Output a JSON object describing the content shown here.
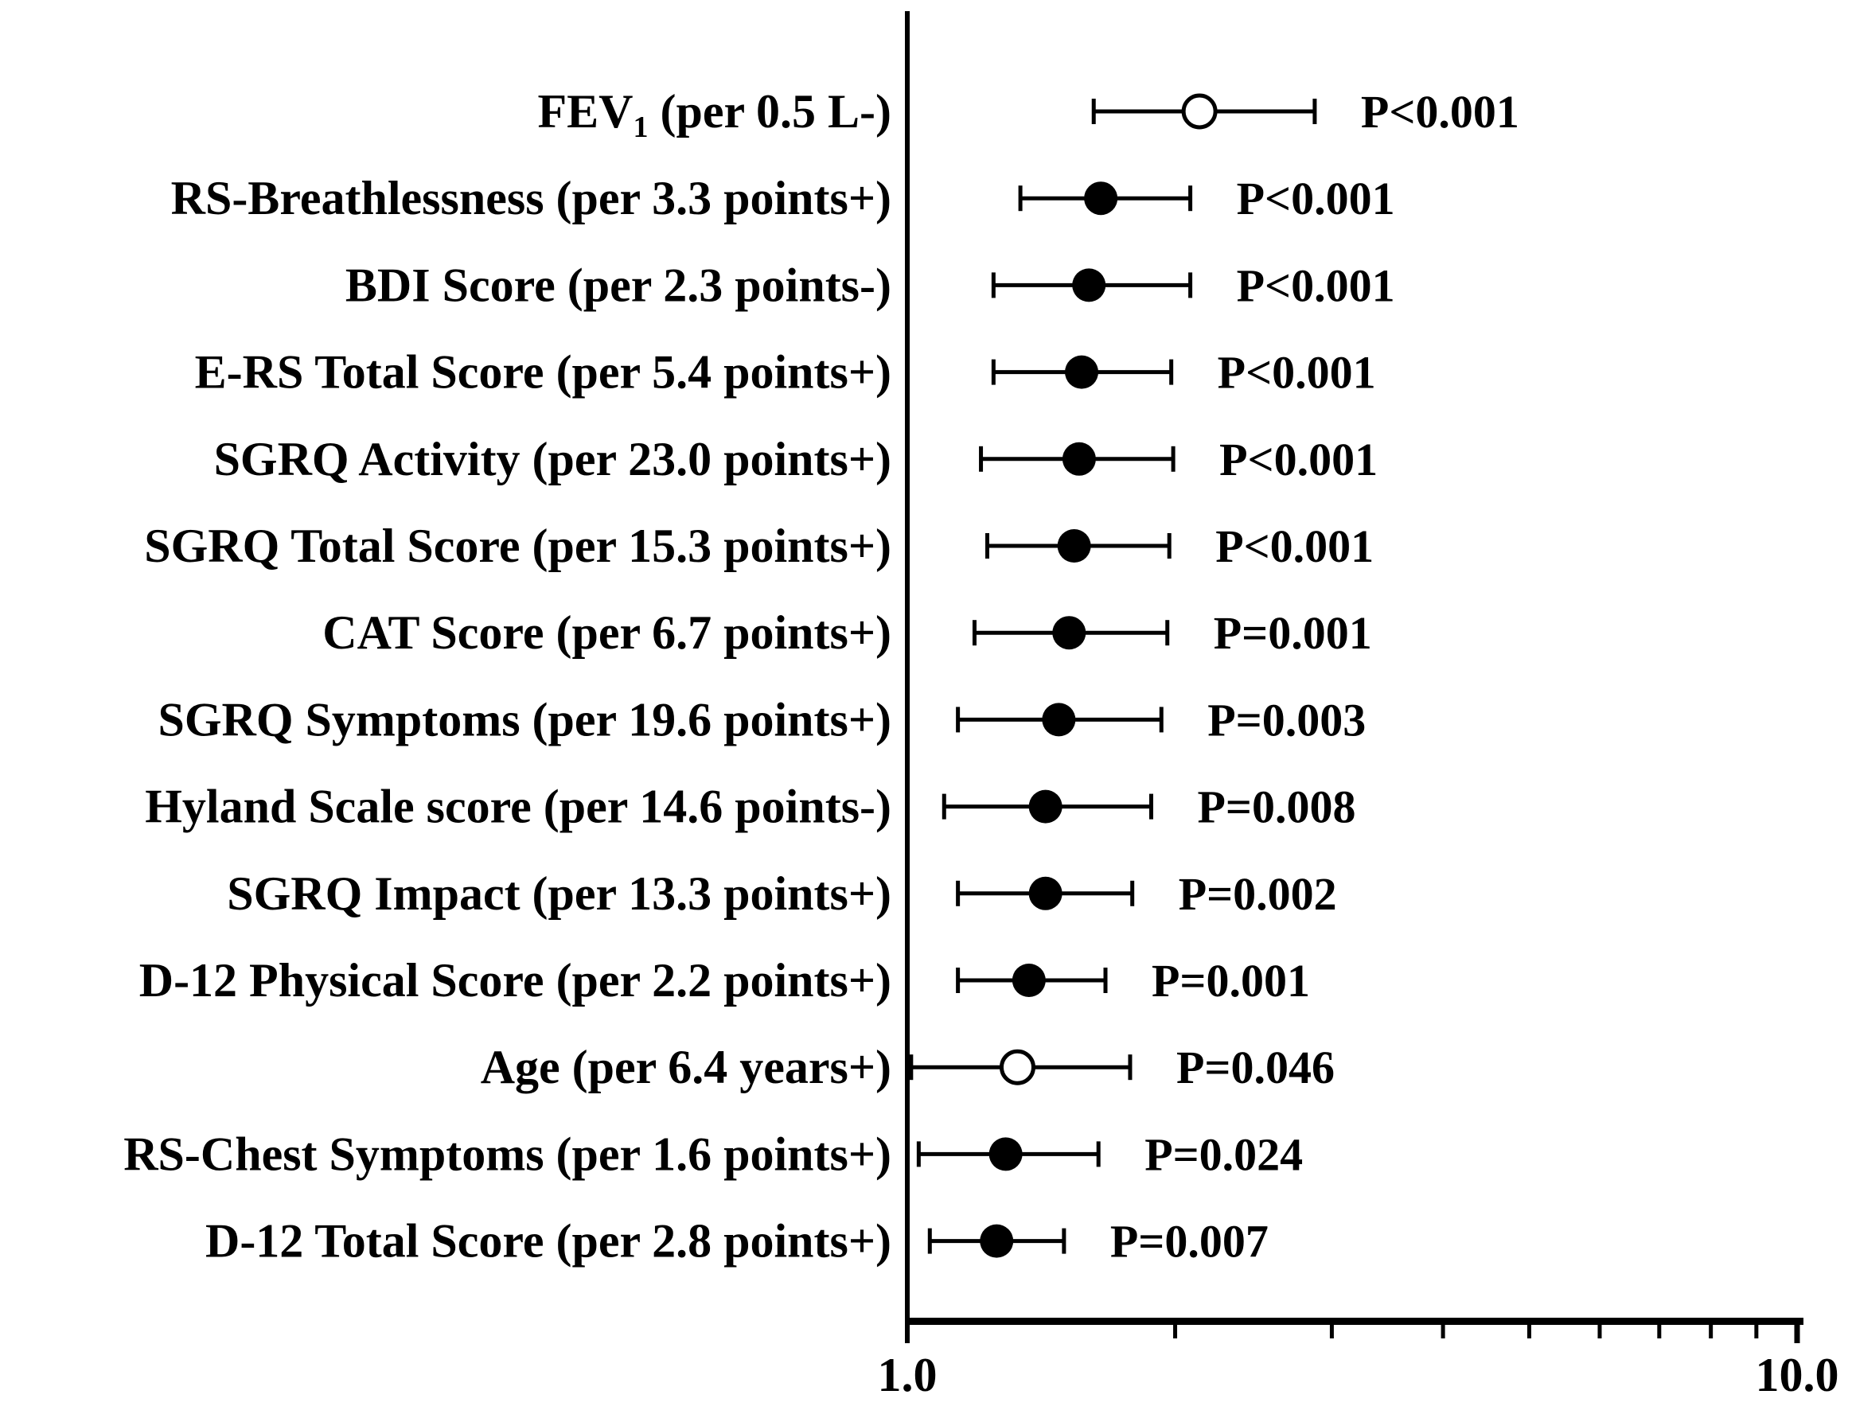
{
  "colors": {
    "foreground": "#000000",
    "background": "#ffffff",
    "open_marker_fill": "#ffffff"
  },
  "chart_data": {
    "type": "scatter",
    "subtype": "forest-plot",
    "title": "",
    "xlabel": "",
    "ylabel": "",
    "xscale": "log",
    "xlim": [
      1.0,
      10.0
    ],
    "grid": false,
    "legend": false,
    "x_ticks": [
      1,
      2,
      3,
      4,
      5,
      6,
      7,
      8,
      9,
      10
    ],
    "x_tick_labels_shown": [
      {
        "value": 1,
        "label": "1.0"
      },
      {
        "value": 10,
        "label": "10.0"
      }
    ],
    "rows": [
      {
        "label_pre": "FEV",
        "label_sub": "1",
        "label_post": " (per 0.5 L-)",
        "or": 2.13,
        "ci_low": 1.62,
        "ci_high": 2.87,
        "p_label": "P<0.001",
        "marker": "open"
      },
      {
        "label_pre": "RS-Breathlessness (per 3.3 points+)",
        "label_sub": "",
        "label_post": "",
        "or": 1.65,
        "ci_low": 1.34,
        "ci_high": 2.08,
        "p_label": "P<0.001",
        "marker": "filled"
      },
      {
        "label_pre": "BDI Score (per 2.3 points-)",
        "label_sub": "",
        "label_post": "",
        "or": 1.6,
        "ci_low": 1.25,
        "ci_high": 2.08,
        "p_label": "P<0.001",
        "marker": "filled"
      },
      {
        "label_pre": "E-RS Total Score (per 5.4 points+)",
        "label_sub": "",
        "label_post": "",
        "or": 1.57,
        "ci_low": 1.25,
        "ci_high": 1.98,
        "p_label": "P<0.001",
        "marker": "filled"
      },
      {
        "label_pre": "SGRQ Activity (per 23.0 points+)",
        "label_sub": "",
        "label_post": "",
        "or": 1.56,
        "ci_low": 1.21,
        "ci_high": 1.99,
        "p_label": "P<0.001",
        "marker": "filled"
      },
      {
        "label_pre": "SGRQ Total Score (per 15.3 points+)",
        "label_sub": "",
        "label_post": "",
        "or": 1.54,
        "ci_low": 1.23,
        "ci_high": 1.97,
        "p_label": "P<0.001",
        "marker": "filled"
      },
      {
        "label_pre": "CAT Score (per 6.7 points+)",
        "label_sub": "",
        "label_post": "",
        "or": 1.52,
        "ci_low": 1.19,
        "ci_high": 1.96,
        "p_label": "P=0.001",
        "marker": "filled"
      },
      {
        "label_pre": "SGRQ Symptoms (per 19.6 points+)",
        "label_sub": "",
        "label_post": "",
        "or": 1.48,
        "ci_low": 1.14,
        "ci_high": 1.93,
        "p_label": "P=0.003",
        "marker": "filled"
      },
      {
        "label_pre": "Hyland Scale score (per 14.6 points-)",
        "label_sub": "",
        "label_post": "",
        "or": 1.43,
        "ci_low": 1.1,
        "ci_high": 1.88,
        "p_label": "P=0.008",
        "marker": "filled"
      },
      {
        "label_pre": "SGRQ Impact (per 13.3 points+)",
        "label_sub": "",
        "label_post": "",
        "or": 1.43,
        "ci_low": 1.14,
        "ci_high": 1.79,
        "p_label": "P=0.002",
        "marker": "filled"
      },
      {
        "label_pre": "D-12 Physical Score (per 2.2 points+)",
        "label_sub": "",
        "label_post": "",
        "or": 1.37,
        "ci_low": 1.14,
        "ci_high": 1.67,
        "p_label": "P=0.001",
        "marker": "filled"
      },
      {
        "label_pre": "Age (per 6.4 years+)",
        "label_sub": "",
        "label_post": "",
        "or": 1.33,
        "ci_low": 1.01,
        "ci_high": 1.78,
        "p_label": "P=0.046",
        "marker": "open"
      },
      {
        "label_pre": "RS-Chest Symptoms (per 1.6 points+)",
        "label_sub": "",
        "label_post": "",
        "or": 1.29,
        "ci_low": 1.03,
        "ci_high": 1.64,
        "p_label": "P=0.024",
        "marker": "filled"
      },
      {
        "label_pre": "D-12 Total Score (per 2.8 points+)",
        "label_sub": "",
        "label_post": "",
        "or": 1.26,
        "ci_low": 1.06,
        "ci_high": 1.5,
        "p_label": "P=0.007",
        "marker": "filled"
      }
    ]
  }
}
